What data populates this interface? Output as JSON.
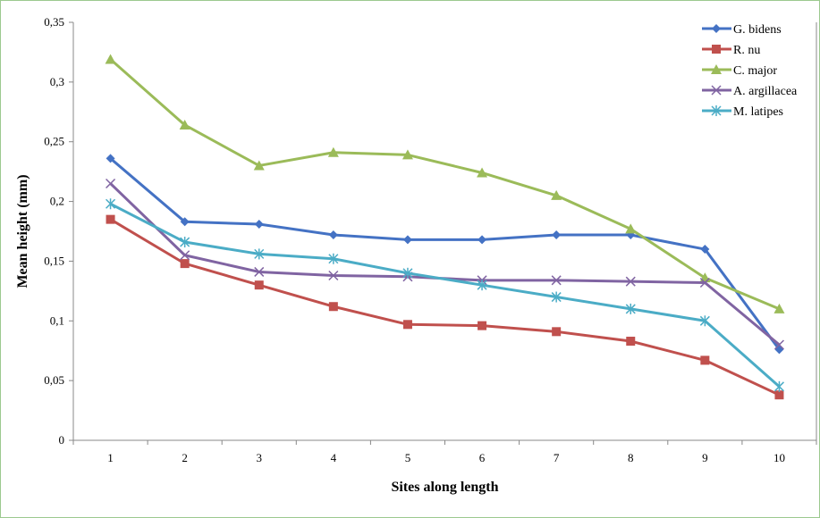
{
  "chart_data": {
    "type": "line",
    "title": "",
    "xlabel": "Sites along length",
    "ylabel": "Mean height (mm)",
    "x": [
      1,
      2,
      3,
      4,
      5,
      6,
      7,
      8,
      9,
      10
    ],
    "x_tick_labels": [
      "1",
      "2",
      "3",
      "4",
      "5",
      "6",
      "7",
      "8",
      "9",
      "10"
    ],
    "ylim": [
      0,
      0.35
    ],
    "y_ticks": [
      0,
      0.05,
      0.1,
      0.15,
      0.2,
      0.25,
      0.3,
      0.35
    ],
    "y_tick_labels": [
      "0",
      "0,05",
      "0,1",
      "0,15",
      "0,2",
      "0,25",
      "0,3",
      "0,35"
    ],
    "grid": false,
    "legend_position": "top-right",
    "series": [
      {
        "name": "G. bidens",
        "color": "#4472c4",
        "marker": "diamond",
        "values": [
          0.236,
          0.183,
          0.181,
          0.172,
          0.168,
          0.168,
          0.172,
          0.172,
          0.16,
          0.076
        ]
      },
      {
        "name": "R. nu",
        "color": "#c0504d",
        "marker": "square",
        "values": [
          0.185,
          0.148,
          0.13,
          0.112,
          0.097,
          0.096,
          0.091,
          0.083,
          0.067,
          0.038
        ]
      },
      {
        "name": "C. major",
        "color": "#9bbb59",
        "marker": "triangle",
        "values": [
          0.319,
          0.264,
          0.23,
          0.241,
          0.239,
          0.224,
          0.205,
          0.177,
          0.136,
          0.11
        ]
      },
      {
        "name": "A. argillacea",
        "color": "#8064a2",
        "marker": "x",
        "values": [
          0.215,
          0.155,
          0.141,
          0.138,
          0.137,
          0.134,
          0.134,
          0.133,
          0.132,
          0.08
        ]
      },
      {
        "name": "M. latipes",
        "color": "#4bacc6",
        "marker": "star",
        "values": [
          0.198,
          0.166,
          0.156,
          0.152,
          0.14,
          0.13,
          0.12,
          0.11,
          0.1,
          0.045
        ]
      }
    ]
  }
}
